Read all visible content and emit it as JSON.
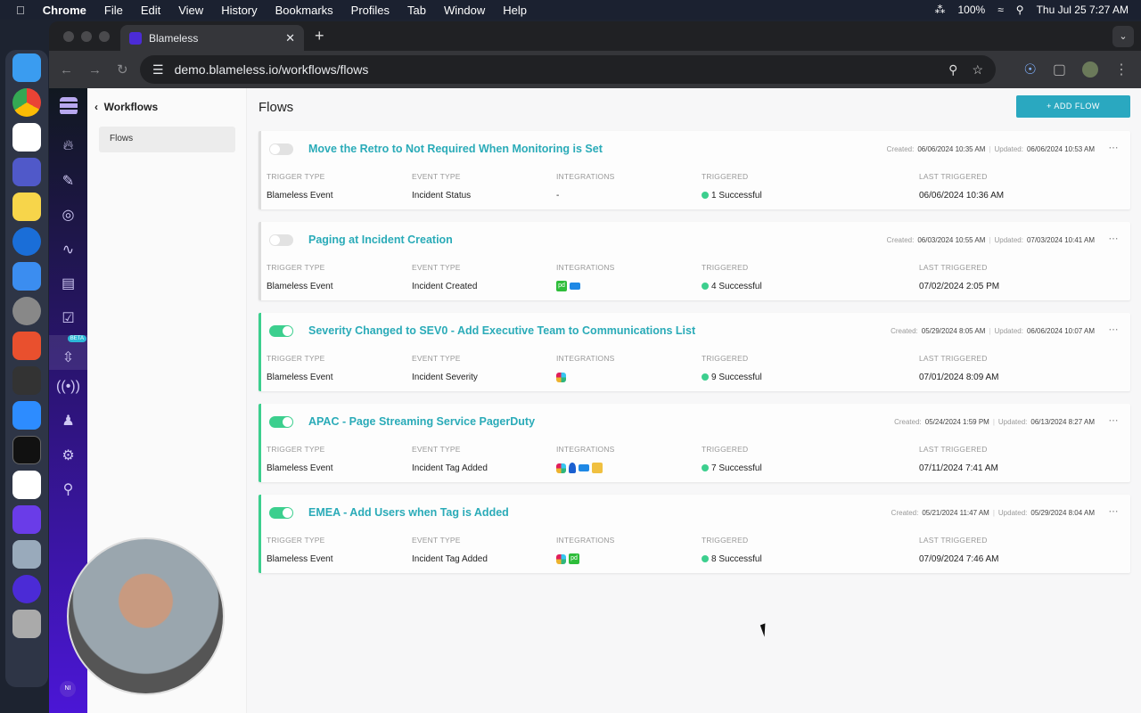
{
  "menubar": {
    "app": "Chrome",
    "items": [
      "File",
      "Edit",
      "View",
      "History",
      "Bookmarks",
      "Profiles",
      "Tab",
      "Window",
      "Help"
    ],
    "battery": "100%",
    "clock": "Thu Jul 25  7:27 AM"
  },
  "browser": {
    "tab_title": "Blameless",
    "url": "demo.blameless.io/workflows/flows"
  },
  "sidebar": {
    "back_label": "Workflows",
    "items": [
      {
        "label": "Flows"
      }
    ],
    "rail_badge": "BETA",
    "avatar_initials": "NI"
  },
  "main": {
    "title": "Flows",
    "add_button": "+ ADD FLOW",
    "labels": {
      "trigger_type": "TRIGGER TYPE",
      "event_type": "EVENT TYPE",
      "integrations": "INTEGRATIONS",
      "triggered": "TRIGGERED",
      "last_triggered": "LAST TRIGGERED",
      "created": "Created:",
      "updated": "Updated:"
    },
    "flows": [
      {
        "enabled": false,
        "title": "Move the Retro to Not Required When Monitoring is Set",
        "created": "06/06/2024 10:35 AM",
        "updated": "06/06/2024 10:53 AM",
        "trigger_type": "Blameless Event",
        "event_type": "Incident Status",
        "integrations": [],
        "integrations_empty": "-",
        "triggered": "1 Successful",
        "last_triggered": "06/06/2024 10:36 AM"
      },
      {
        "enabled": false,
        "title": "Paging at Incident Creation",
        "created": "06/03/2024 10:55 AM",
        "updated": "07/03/2024 10:41 AM",
        "trigger_type": "Blameless Event",
        "event_type": "Incident Created",
        "integrations": [
          "pagerduty",
          "email"
        ],
        "triggered": "4 Successful",
        "last_triggered": "07/02/2024 2:05 PM"
      },
      {
        "enabled": true,
        "title": "Severity Changed to SEV0 - Add Executive Team to Communications List",
        "created": "05/29/2024 8:05 AM",
        "updated": "06/06/2024 10:07 AM",
        "trigger_type": "Blameless Event",
        "event_type": "Incident Severity",
        "integrations": [
          "slack"
        ],
        "triggered": "9 Successful",
        "last_triggered": "07/01/2024 8:09 AM"
      },
      {
        "enabled": true,
        "title": "APAC - Page Streaming Service PagerDuty",
        "created": "05/24/2024 1:59 PM",
        "updated": "06/13/2024 8:27 AM",
        "trigger_type": "Blameless Event",
        "event_type": "Incident Tag Added",
        "integrations": [
          "slack",
          "person",
          "email",
          "chat"
        ],
        "triggered": "7 Successful",
        "last_triggered": "07/11/2024 7:41 AM"
      },
      {
        "enabled": true,
        "title": "EMEA - Add Users when Tag is Added",
        "created": "05/21/2024 11:47 AM",
        "updated": "05/29/2024 8:04 AM",
        "trigger_type": "Blameless Event",
        "event_type": "Incident Tag Added",
        "integrations": [
          "slack",
          "pagerduty"
        ],
        "triggered": "8 Successful",
        "last_triggered": "07/09/2024 7:46 AM"
      }
    ]
  },
  "colors": {
    "accent": "#2aa8c0",
    "enabled": "#3ccf8e",
    "rail": "#4b16d6"
  }
}
